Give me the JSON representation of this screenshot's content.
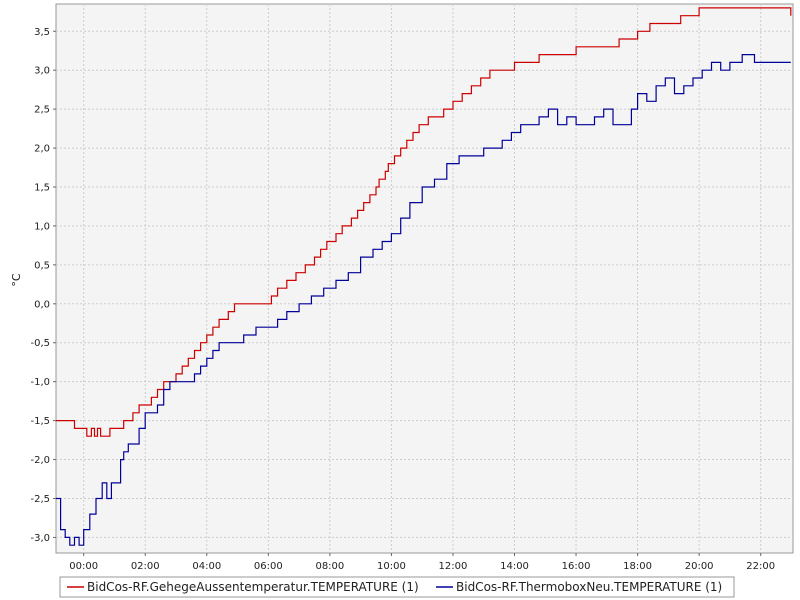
{
  "chart_data": {
    "type": "line",
    "title": "",
    "xlabel": "",
    "ylabel": "°C",
    "ylim": [
      -3.2,
      3.85
    ],
    "grid": true,
    "legend_position": "bottom",
    "background_color": "#f4f4f4",
    "yticks": [
      {
        "value": 3.5,
        "label": "3,5"
      },
      {
        "value": 3.0,
        "label": "3,0"
      },
      {
        "value": 2.5,
        "label": "2,5"
      },
      {
        "value": 2.0,
        "label": "2,0"
      },
      {
        "value": 1.5,
        "label": "1,5"
      },
      {
        "value": 1.0,
        "label": "1,0"
      },
      {
        "value": 0.5,
        "label": "0,5"
      },
      {
        "value": 0.0,
        "label": "0,0"
      },
      {
        "value": -0.5,
        "label": "-0,5"
      },
      {
        "value": -1.0,
        "label": "-1,0"
      },
      {
        "value": -1.5,
        "label": "-1,5"
      },
      {
        "value": -2.0,
        "label": "-2,0"
      },
      {
        "value": -2.5,
        "label": "-2,5"
      },
      {
        "value": -3.0,
        "label": "-3,0"
      }
    ],
    "xticks": [
      {
        "value": 0,
        "label": "00:00"
      },
      {
        "value": 2,
        "label": "02:00"
      },
      {
        "value": 4,
        "label": "04:00"
      },
      {
        "value": 6,
        "label": "06:00"
      },
      {
        "value": 8,
        "label": "08:00"
      },
      {
        "value": 10,
        "label": "10:00"
      },
      {
        "value": 12,
        "label": "12:00"
      },
      {
        "value": 14,
        "label": "14:00"
      },
      {
        "value": 16,
        "label": "16:00"
      },
      {
        "value": 18,
        "label": "18:00"
      },
      {
        "value": 20,
        "label": "20:00"
      },
      {
        "value": 22,
        "label": "22:00"
      }
    ],
    "xlim": [
      -0.9,
      23.05
    ],
    "series": [
      {
        "name": "BidCos-RF.GehegeAussentemperatur.TEMPERATURE (1)",
        "color": "#cc0000",
        "x": [
          -0.9,
          -0.3,
          0,
          0.1,
          0.25,
          0.35,
          0.45,
          0.55,
          0.85,
          0.9,
          1.1,
          1.3,
          1.4,
          1.6,
          1.8,
          2.2,
          2.4,
          2.6,
          2.8,
          3.0,
          3.2,
          3.4,
          3.6,
          3.8,
          4.0,
          4.2,
          4.4,
          4.7,
          4.9,
          5.0,
          5.8,
          6.1,
          6.3,
          6.6,
          6.9,
          7.2,
          7.5,
          7.7,
          7.9,
          8.2,
          8.4,
          8.7,
          8.9,
          9.1,
          9.3,
          9.5,
          9.6,
          9.8,
          9.9,
          10.1,
          10.3,
          10.5,
          10.7,
          10.9,
          11.2,
          11.4,
          11.7,
          12.0,
          12.3,
          12.6,
          12.9,
          13.2,
          13.6,
          14.0,
          14.3,
          14.8,
          15.4,
          15.7,
          16.0,
          16.4,
          17.4,
          17.6,
          18.0,
          18.4,
          18.8,
          19.1,
          19.4,
          20.0,
          20.6,
          21.8,
          22.6,
          22.98
        ],
        "values": [
          -1.5,
          -1.6,
          -1.6,
          -1.7,
          -1.6,
          -1.7,
          -1.6,
          -1.7,
          -1.6,
          -1.6,
          -1.6,
          -1.5,
          -1.5,
          -1.4,
          -1.3,
          -1.2,
          -1.1,
          -1.0,
          -1.0,
          -0.9,
          -0.8,
          -0.7,
          -0.6,
          -0.5,
          -0.4,
          -0.3,
          -0.2,
          -0.1,
          0.0,
          0.0,
          0.0,
          0.1,
          0.2,
          0.3,
          0.4,
          0.5,
          0.6,
          0.7,
          0.8,
          0.9,
          1.0,
          1.1,
          1.2,
          1.3,
          1.4,
          1.5,
          1.6,
          1.7,
          1.8,
          1.9,
          2.0,
          2.1,
          2.2,
          2.3,
          2.4,
          2.4,
          2.5,
          2.6,
          2.7,
          2.8,
          2.9,
          3.0,
          3.0,
          3.1,
          3.1,
          3.2,
          3.2,
          3.2,
          3.3,
          3.3,
          3.4,
          3.4,
          3.5,
          3.6,
          3.6,
          3.6,
          3.7,
          3.8,
          3.8,
          3.8,
          3.8,
          3.7
        ]
      },
      {
        "name": "BidCos-RF.ThermoboxNeu.TEMPERATURE (1)",
        "color": "#000099",
        "x": [
          -0.9,
          -0.75,
          -0.6,
          -0.45,
          -0.3,
          -0.15,
          0.0,
          0.2,
          0.4,
          0.6,
          0.75,
          0.9,
          1.2,
          1.3,
          1.45,
          1.6,
          1.8,
          2.0,
          2.2,
          2.4,
          2.6,
          2.8,
          3.0,
          3.4,
          3.6,
          3.8,
          4.0,
          4.2,
          4.4,
          4.8,
          5.2,
          5.6,
          6.0,
          6.3,
          6.6,
          7.0,
          7.4,
          7.8,
          8.2,
          8.6,
          9.0,
          9.4,
          9.7,
          10.0,
          10.3,
          10.6,
          11.0,
          11.4,
          11.8,
          12.2,
          12.6,
          13.0,
          13.3,
          13.6,
          13.9,
          14.2,
          14.5,
          14.8,
          15.1,
          15.4,
          15.7,
          16.0,
          16.3,
          16.6,
          16.9,
          17.2,
          17.5,
          17.8,
          18.0,
          18.3,
          18.6,
          18.9,
          19.2,
          19.5,
          19.8,
          20.1,
          20.4,
          20.7,
          21.0,
          21.4,
          21.8,
          22.2,
          22.6,
          22.98
        ],
        "values": [
          -2.5,
          -2.9,
          -3.0,
          -3.1,
          -3.0,
          -3.1,
          -2.9,
          -2.7,
          -2.5,
          -2.3,
          -2.5,
          -2.3,
          -2.0,
          -1.9,
          -1.8,
          -1.8,
          -1.6,
          -1.4,
          -1.4,
          -1.3,
          -1.1,
          -1.0,
          -1.0,
          -1.0,
          -0.9,
          -0.8,
          -0.7,
          -0.6,
          -0.5,
          -0.5,
          -0.4,
          -0.3,
          -0.3,
          -0.2,
          -0.1,
          0.0,
          0.1,
          0.2,
          0.3,
          0.4,
          0.6,
          0.7,
          0.8,
          0.9,
          1.1,
          1.3,
          1.5,
          1.6,
          1.8,
          1.9,
          1.9,
          2.0,
          2.0,
          2.1,
          2.2,
          2.3,
          2.3,
          2.4,
          2.5,
          2.3,
          2.4,
          2.3,
          2.3,
          2.4,
          2.5,
          2.3,
          2.3,
          2.5,
          2.7,
          2.6,
          2.8,
          2.9,
          2.7,
          2.8,
          2.9,
          3.0,
          3.1,
          3.0,
          3.1,
          3.2,
          3.1,
          3.1,
          3.1,
          3.1
        ]
      }
    ]
  }
}
